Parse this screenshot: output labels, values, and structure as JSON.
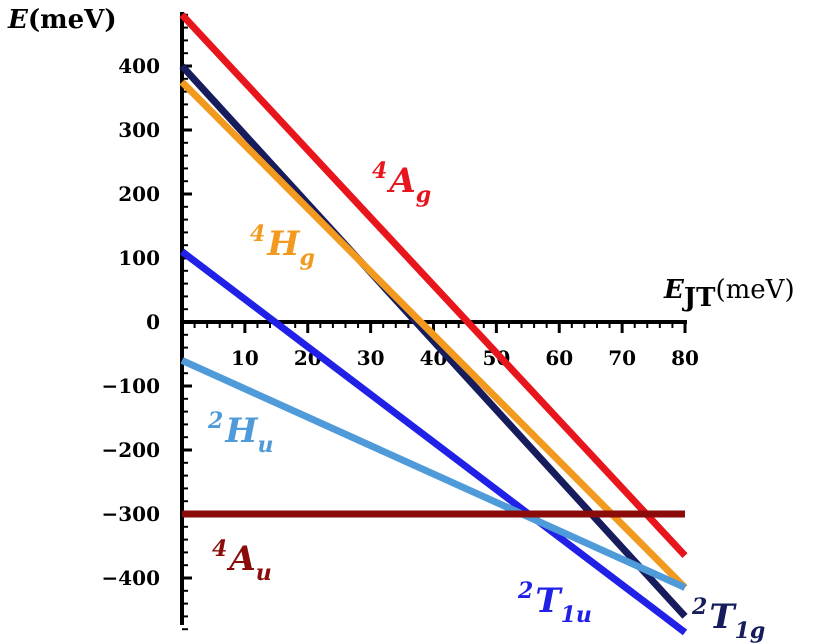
{
  "chart_data": {
    "type": "line",
    "xaxis": {
      "title": "E",
      "title_sub": "JT",
      "unit": "(meV)",
      "range": [
        0,
        80
      ],
      "ticks": [
        {
          "value": 10,
          "label": "10"
        },
        {
          "value": 20,
          "label": "20"
        },
        {
          "value": 30,
          "label": "30"
        },
        {
          "value": 40,
          "label": "40"
        },
        {
          "value": 50,
          "label": "50"
        },
        {
          "value": 60,
          "label": "60"
        },
        {
          "value": 70,
          "label": "70"
        },
        {
          "value": 80,
          "label": "80"
        }
      ]
    },
    "yaxis": {
      "title": "E",
      "unit": "(meV)",
      "range": [
        -480,
        480
      ],
      "ticks": [
        {
          "value": 400,
          "label": "400"
        },
        {
          "value": 300,
          "label": "300"
        },
        {
          "value": 200,
          "label": "200"
        },
        {
          "value": 100,
          "label": "100"
        },
        {
          "value": 0,
          "label": "0"
        },
        {
          "value": -100,
          "label": "−100"
        },
        {
          "value": -200,
          "label": "−200"
        },
        {
          "value": -300,
          "label": "−300"
        },
        {
          "value": -400,
          "label": "−400"
        }
      ]
    },
    "series": [
      {
        "id": "4Ag",
        "sup": "4",
        "main": "A",
        "sub": "g",
        "color": "#e8151c",
        "x": [
          0,
          80
        ],
        "y": [
          480,
          -365
        ]
      },
      {
        "id": "1g",
        "sup": "2",
        "main": "T",
        "sub": "1g",
        "color": "#161c5c",
        "x": [
          0,
          80
        ],
        "y": [
          400,
          -460
        ]
      },
      {
        "id": "4Hg",
        "sup": "4",
        "main": "H",
        "sub": "g",
        "color": "#f29a1f",
        "x": [
          0,
          80
        ],
        "y": [
          375,
          -415
        ]
      },
      {
        "id": "1u",
        "sup": "2",
        "main": "T",
        "sub": "1u",
        "color": "#2020e6",
        "x": [
          0,
          80
        ],
        "y": [
          110,
          -485
        ]
      },
      {
        "id": "2Hu",
        "sup": "2",
        "main": "H",
        "sub": "u",
        "color": "#4f9bd9",
        "x": [
          0,
          80
        ],
        "y": [
          -60,
          -415
        ]
      },
      {
        "id": "4Au",
        "sup": "4",
        "main": "A",
        "sub": "u",
        "color": "#8b0a0a",
        "x": [
          0,
          80
        ],
        "y": [
          -300,
          -300
        ]
      }
    ],
    "grid": false
  }
}
